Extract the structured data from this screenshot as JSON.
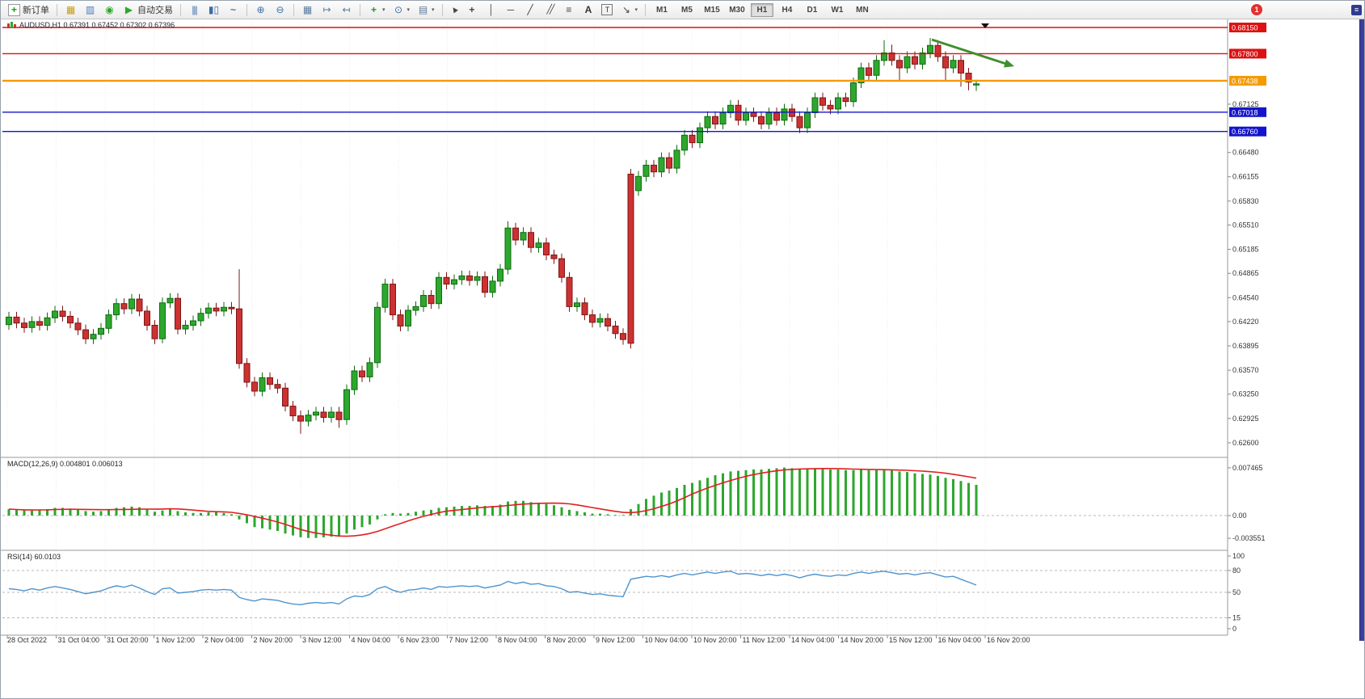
{
  "window": {
    "notification_count": "1"
  },
  "toolbar": {
    "new_order_label": "新订单",
    "autotrading_label": "自动交易",
    "timeframes": [
      "M1",
      "M5",
      "M15",
      "M30",
      "H1",
      "H4",
      "D1",
      "W1",
      "MN"
    ],
    "active_timeframe": "H1"
  },
  "chart": {
    "title": "AUDUSD,H1  0.67391 0.67452 0.67302 0.67396",
    "symbol": "AUDUSD",
    "period": "H1",
    "price_axis": {
      "plain_ticks": [
        "0.67125",
        "0.66480",
        "0.66155",
        "0.65830",
        "0.65510",
        "0.65185",
        "0.64865",
        "0.64540",
        "0.64220",
        "0.63895",
        "0.63570",
        "0.63250",
        "0.62925",
        "0.62600"
      ]
    },
    "hlines": [
      {
        "label": "0.68150",
        "price": 0.6815,
        "color": "#dd1111",
        "width": 1.4
      },
      {
        "label": "0.67800",
        "price": 0.678,
        "color": "#dd1111",
        "width": 1.4
      },
      {
        "label": "0.67438",
        "price": 0.67438,
        "color": "#f59a00",
        "width": 2.4
      },
      {
        "label": "0.67018",
        "price": 0.67018,
        "color": "#1414cc",
        "width": 1.4
      },
      {
        "label": "0.66760",
        "price": 0.6676,
        "color": "#1414cc",
        "width": 1.4
      }
    ],
    "time_labels": [
      "28 Oct 2022",
      "31 Oct 04:00",
      "31 Oct 20:00",
      "1 Nov 12:00",
      "2 Nov 04:00",
      "2 Nov 20:00",
      "3 Nov 12:00",
      "4 Nov 04:00",
      "6 Nov 23:00",
      "7 Nov 12:00",
      "8 Nov 04:00",
      "8 Nov 20:00",
      "9 Nov 12:00",
      "10 Nov 04:00",
      "10 Nov 20:00",
      "11 Nov 12:00",
      "14 Nov 04:00",
      "14 Nov 20:00",
      "15 Nov 12:00",
      "16 Nov 04:00",
      "16 Nov 20:00"
    ]
  },
  "macd_panel": {
    "label": "MACD(12,26,9) 0.004801 0.006013",
    "axis_labels": [
      "0.007465",
      "0.00",
      "-0.003551"
    ]
  },
  "rsi_panel": {
    "label": "RSI(14) 60.0103",
    "axis_labels": [
      "100",
      "80",
      "50",
      "15",
      "0"
    ],
    "level_lines": [
      80,
      50,
      15
    ]
  },
  "colors": {
    "bull": "#2ea72e",
    "bull_dark": "#0d6b0d",
    "bear": "#cc3232",
    "bear_dark": "#7d1515",
    "macd_signal": "#e02020",
    "rsi_line": "#4f94cd",
    "grid": "#ececec",
    "level_dash": "#b8b8b8",
    "arrow": "#3f8f2f"
  },
  "chart_data": {
    "type": "candlestick",
    "symbol": "AUDUSD",
    "timeframe": "H1",
    "ohlc_current": {
      "open": 0.67391,
      "high": 0.67452,
      "low": 0.67302,
      "close": 0.67396
    },
    "price_range": [
      0.626,
      0.6815
    ],
    "candles": [
      [
        0.6418,
        0.6435,
        0.6411,
        0.6428
      ],
      [
        0.6428,
        0.6435,
        0.6413,
        0.642
      ],
      [
        0.642,
        0.6427,
        0.6407,
        0.6414
      ],
      [
        0.6414,
        0.6429,
        0.6407,
        0.6422
      ],
      [
        0.6422,
        0.6429,
        0.641,
        0.6417
      ],
      [
        0.6417,
        0.6434,
        0.641,
        0.6427
      ],
      [
        0.6427,
        0.6443,
        0.642,
        0.6436
      ],
      [
        0.6436,
        0.6443,
        0.6422,
        0.6429
      ],
      [
        0.6429,
        0.6436,
        0.6413,
        0.642
      ],
      [
        0.642,
        0.6427,
        0.6404,
        0.6411
      ],
      [
        0.6411,
        0.6418,
        0.6392,
        0.6399
      ],
      [
        0.6399,
        0.6412,
        0.6392,
        0.6405
      ],
      [
        0.6405,
        0.642,
        0.6398,
        0.6413
      ],
      [
        0.6413,
        0.6438,
        0.6406,
        0.6431
      ],
      [
        0.6431,
        0.6453,
        0.6424,
        0.6446
      ],
      [
        0.6446,
        0.6453,
        0.6432,
        0.6439
      ],
      [
        0.6439,
        0.6459,
        0.6432,
        0.6452
      ],
      [
        0.6452,
        0.6459,
        0.6429,
        0.6436
      ],
      [
        0.6436,
        0.6443,
        0.641,
        0.6417
      ],
      [
        0.6417,
        0.6424,
        0.6392,
        0.6399
      ],
      [
        0.6399,
        0.6454,
        0.6393,
        0.6447
      ],
      [
        0.6447,
        0.646,
        0.644,
        0.6453
      ],
      [
        0.6453,
        0.646,
        0.6405,
        0.6412
      ],
      [
        0.6412,
        0.6424,
        0.6405,
        0.6417
      ],
      [
        0.6417,
        0.643,
        0.641,
        0.6423
      ],
      [
        0.6423,
        0.644,
        0.6416,
        0.6433
      ],
      [
        0.6433,
        0.6447,
        0.6426,
        0.644
      ],
      [
        0.644,
        0.6447,
        0.6429,
        0.6436
      ],
      [
        0.6436,
        0.6448,
        0.6429,
        0.6441
      ],
      [
        0.6441,
        0.6448,
        0.6432,
        0.6439
      ],
      [
        0.6439,
        0.6492,
        0.6359,
        0.6366
      ],
      [
        0.6366,
        0.6373,
        0.6334,
        0.6341
      ],
      [
        0.6341,
        0.6348,
        0.6322,
        0.6329
      ],
      [
        0.6329,
        0.6354,
        0.6322,
        0.6347
      ],
      [
        0.6347,
        0.6354,
        0.6331,
        0.6338
      ],
      [
        0.6338,
        0.6345,
        0.6326,
        0.6333
      ],
      [
        0.6333,
        0.634,
        0.6302,
        0.6309
      ],
      [
        0.6309,
        0.6316,
        0.6289,
        0.6296
      ],
      [
        0.6296,
        0.6303,
        0.6272,
        0.6289
      ],
      [
        0.6289,
        0.6304,
        0.6282,
        0.6297
      ],
      [
        0.6297,
        0.6308,
        0.629,
        0.6301
      ],
      [
        0.6301,
        0.6308,
        0.6287,
        0.6294
      ],
      [
        0.6294,
        0.6308,
        0.6287,
        0.6301
      ],
      [
        0.6301,
        0.6308,
        0.628,
        0.6291
      ],
      [
        0.6291,
        0.6338,
        0.6284,
        0.6331
      ],
      [
        0.6331,
        0.6363,
        0.6324,
        0.6356
      ],
      [
        0.6356,
        0.6363,
        0.6341,
        0.6348
      ],
      [
        0.6348,
        0.6374,
        0.6341,
        0.6367
      ],
      [
        0.6367,
        0.6448,
        0.636,
        0.6441
      ],
      [
        0.6441,
        0.6479,
        0.6434,
        0.6472
      ],
      [
        0.6472,
        0.6479,
        0.6424,
        0.6431
      ],
      [
        0.6431,
        0.6438,
        0.6409,
        0.6416
      ],
      [
        0.6416,
        0.6444,
        0.6409,
        0.6437
      ],
      [
        0.6437,
        0.6449,
        0.643,
        0.6442
      ],
      [
        0.6442,
        0.6464,
        0.6435,
        0.6457
      ],
      [
        0.6457,
        0.6464,
        0.6439,
        0.6446
      ],
      [
        0.6446,
        0.6488,
        0.6439,
        0.6481
      ],
      [
        0.6481,
        0.6488,
        0.6465,
        0.6472
      ],
      [
        0.6472,
        0.6485,
        0.6465,
        0.6478
      ],
      [
        0.6478,
        0.649,
        0.6471,
        0.6483
      ],
      [
        0.6483,
        0.649,
        0.647,
        0.6477
      ],
      [
        0.6477,
        0.6489,
        0.647,
        0.6482
      ],
      [
        0.6482,
        0.6489,
        0.6454,
        0.6461
      ],
      [
        0.6461,
        0.6483,
        0.6454,
        0.6476
      ],
      [
        0.6476,
        0.6499,
        0.6469,
        0.6492
      ],
      [
        0.6492,
        0.6556,
        0.6485,
        0.6547
      ],
      [
        0.6547,
        0.6554,
        0.6524,
        0.6531
      ],
      [
        0.6531,
        0.6548,
        0.6524,
        0.6541
      ],
      [
        0.6541,
        0.6548,
        0.6514,
        0.6521
      ],
      [
        0.6521,
        0.6534,
        0.6514,
        0.6527
      ],
      [
        0.6527,
        0.6534,
        0.6504,
        0.6511
      ],
      [
        0.6511,
        0.6518,
        0.6499,
        0.6506
      ],
      [
        0.6506,
        0.6513,
        0.6474,
        0.6481
      ],
      [
        0.6481,
        0.6488,
        0.6435,
        0.6442
      ],
      [
        0.6442,
        0.6454,
        0.6435,
        0.6447
      ],
      [
        0.6447,
        0.6454,
        0.6424,
        0.6431
      ],
      [
        0.6431,
        0.6438,
        0.6414,
        0.6421
      ],
      [
        0.6421,
        0.6433,
        0.6414,
        0.6426
      ],
      [
        0.6426,
        0.6433,
        0.6409,
        0.6416
      ],
      [
        0.6416,
        0.6423,
        0.6399,
        0.6406
      ],
      [
        0.6406,
        0.6413,
        0.6391,
        0.6398
      ],
      [
        0.6619,
        0.6626,
        0.6386,
        0.6393
      ],
      [
        0.6597,
        0.6623,
        0.659,
        0.6616
      ],
      [
        0.6616,
        0.6638,
        0.6609,
        0.6631
      ],
      [
        0.6631,
        0.6638,
        0.6615,
        0.6622
      ],
      [
        0.6622,
        0.6648,
        0.6615,
        0.6641
      ],
      [
        0.6641,
        0.6648,
        0.662,
        0.6627
      ],
      [
        0.6627,
        0.6658,
        0.662,
        0.6651
      ],
      [
        0.6651,
        0.6678,
        0.6644,
        0.6671
      ],
      [
        0.6671,
        0.6678,
        0.6654,
        0.6661
      ],
      [
        0.6661,
        0.6688,
        0.6654,
        0.6681
      ],
      [
        0.6681,
        0.6703,
        0.6674,
        0.6696
      ],
      [
        0.6696,
        0.6703,
        0.6679,
        0.6686
      ],
      [
        0.6686,
        0.6708,
        0.6679,
        0.6701
      ],
      [
        0.6701,
        0.6718,
        0.6694,
        0.6711
      ],
      [
        0.6711,
        0.6718,
        0.6684,
        0.6691
      ],
      [
        0.6691,
        0.6708,
        0.6684,
        0.6701
      ],
      [
        0.6701,
        0.6708,
        0.6689,
        0.6696
      ],
      [
        0.6696,
        0.6703,
        0.6679,
        0.6686
      ],
      [
        0.6686,
        0.6708,
        0.6679,
        0.6701
      ],
      [
        0.6701,
        0.6708,
        0.6684,
        0.6691
      ],
      [
        0.6691,
        0.6713,
        0.6684,
        0.6706
      ],
      [
        0.6706,
        0.6713,
        0.6689,
        0.6696
      ],
      [
        0.6696,
        0.6703,
        0.6674,
        0.6681
      ],
      [
        0.6681,
        0.6708,
        0.6674,
        0.6701
      ],
      [
        0.6701,
        0.6728,
        0.6694,
        0.6721
      ],
      [
        0.6721,
        0.6728,
        0.6704,
        0.6711
      ],
      [
        0.6711,
        0.6718,
        0.6699,
        0.6706
      ],
      [
        0.6706,
        0.6728,
        0.6699,
        0.6721
      ],
      [
        0.6721,
        0.6728,
        0.6709,
        0.6716
      ],
      [
        0.6716,
        0.6748,
        0.6709,
        0.6741
      ],
      [
        0.6741,
        0.6768,
        0.6734,
        0.6761
      ],
      [
        0.6761,
        0.6768,
        0.6744,
        0.6751
      ],
      [
        0.6751,
        0.6778,
        0.6744,
        0.6771
      ],
      [
        0.6771,
        0.6798,
        0.6764,
        0.6781
      ],
      [
        0.6781,
        0.6792,
        0.6764,
        0.6771
      ],
      [
        0.6771,
        0.6778,
        0.6744,
        0.6761
      ],
      [
        0.6761,
        0.6783,
        0.6754,
        0.6776
      ],
      [
        0.6776,
        0.6783,
        0.6759,
        0.6766
      ],
      [
        0.6766,
        0.6788,
        0.6759,
        0.6781
      ],
      [
        0.6781,
        0.6801,
        0.6774,
        0.6791
      ],
      [
        0.6791,
        0.6798,
        0.6769,
        0.6776
      ],
      [
        0.6776,
        0.6783,
        0.6744,
        0.6761
      ],
      [
        0.6761,
        0.6778,
        0.6754,
        0.6771
      ],
      [
        0.6771,
        0.6778,
        0.6736,
        0.6754
      ],
      [
        0.6754,
        0.6761,
        0.6731,
        0.6742
      ],
      [
        0.67391,
        0.67452,
        0.67302,
        0.67396
      ]
    ],
    "indicators": {
      "macd": {
        "params": "12,26,9",
        "main": 0.004801,
        "signal": 0.006013,
        "histogram": [
          0.001,
          0.0009,
          0.0008,
          0.0008,
          0.0009,
          0.001,
          0.0012,
          0.0012,
          0.0011,
          0.0009,
          0.0007,
          0.0006,
          0.0007,
          0.0009,
          0.0012,
          0.0013,
          0.0014,
          0.0013,
          0.001,
          0.0006,
          0.0008,
          0.001,
          0.0007,
          0.0005,
          0.0004,
          0.0004,
          0.0005,
          0.0005,
          0.0004,
          0.0002,
          -0.0006,
          -0.0012,
          -0.0018,
          -0.002,
          -0.0022,
          -0.0024,
          -0.0028,
          -0.0031,
          -0.0034,
          -0.0035,
          -0.0035,
          -0.0034,
          -0.0033,
          -0.0033,
          -0.0028,
          -0.0022,
          -0.0018,
          -0.0014,
          -0.0006,
          0.0002,
          0.0004,
          0.0003,
          0.0004,
          0.0006,
          0.0008,
          0.0009,
          0.0012,
          0.0013,
          0.0014,
          0.0015,
          0.0015,
          0.0016,
          0.0015,
          0.0015,
          0.0017,
          0.0022,
          0.0023,
          0.0023,
          0.0021,
          0.002,
          0.0018,
          0.0016,
          0.0013,
          0.0009,
          0.0007,
          0.0005,
          0.0003,
          0.0003,
          0.0002,
          0.0001,
          0.0001,
          0.001,
          0.0018,
          0.0026,
          0.0031,
          0.0036,
          0.0039,
          0.0043,
          0.0048,
          0.0051,
          0.0055,
          0.0059,
          0.0063,
          0.0066,
          0.0069,
          0.007,
          0.0071,
          0.0072,
          0.0072,
          0.0073,
          0.0074,
          0.0075,
          0.0074,
          0.0073,
          0.0073,
          0.0074,
          0.0073,
          0.0072,
          0.0072,
          0.0071,
          0.0071,
          0.0072,
          0.0071,
          0.0071,
          0.0072,
          0.0071,
          0.0069,
          0.0068,
          0.0066,
          0.0065,
          0.0064,
          0.0062,
          0.0059,
          0.0057,
          0.0054,
          0.0051,
          0.004801
        ]
      },
      "rsi": {
        "period": 14,
        "value": 60.0103,
        "values": [
          55,
          54,
          52,
          55,
          53,
          56,
          58,
          56,
          54,
          51,
          48,
          50,
          52,
          56,
          59,
          57,
          60,
          56,
          51,
          47,
          55,
          56,
          49,
          50,
          51,
          53,
          54,
          53,
          54,
          53,
          43,
          40,
          38,
          41,
          40,
          39,
          36,
          34,
          33,
          35,
          36,
          35,
          36,
          34,
          41,
          45,
          44,
          47,
          55,
          58,
          53,
          50,
          53,
          54,
          56,
          54,
          58,
          57,
          58,
          59,
          58,
          59,
          56,
          58,
          60,
          65,
          62,
          64,
          61,
          62,
          59,
          58,
          55,
          50,
          51,
          49,
          47,
          48,
          46,
          45,
          44,
          68,
          70,
          72,
          71,
          73,
          71,
          74,
          76,
          74,
          76,
          78,
          76,
          78,
          79,
          75,
          76,
          75,
          73,
          75,
          73,
          75,
          73,
          70,
          73,
          75,
          73,
          72,
          74,
          73,
          76,
          78,
          76,
          78,
          79,
          77,
          75,
          76,
          74,
          76,
          77,
          74,
          71,
          72,
          68,
          64,
          60.0103
        ]
      }
    },
    "annotations": [
      {
        "type": "arrow",
        "direction": "down-right",
        "color": "#3f8f2f",
        "note": "trend arrow at top right of chart"
      }
    ]
  }
}
